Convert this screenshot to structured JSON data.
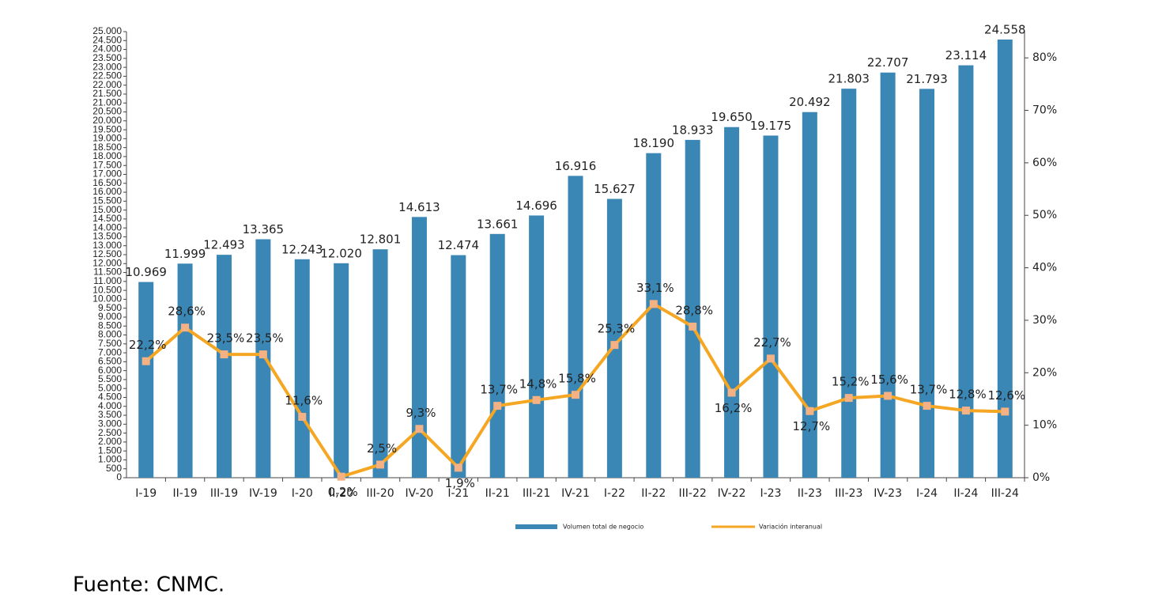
{
  "chart_data": {
    "type": "bar-line",
    "categories": [
      "I-19",
      "II-19",
      "III-19",
      "IV-19",
      "I-20",
      "II-20",
      "III-20",
      "IV-20",
      "I-21",
      "II-21",
      "III-21",
      "IV-21",
      "I-22",
      "II-22",
      "III-22",
      "IV-22",
      "I-23",
      "II-23",
      "III-23",
      "IV-23",
      "I-24",
      "II-24",
      "III-24"
    ],
    "series": [
      {
        "name": "Volumen total de negocio",
        "color": "#3a87b5",
        "values": [
          10969,
          11999,
          12493,
          13365,
          12243,
          12020,
          12801,
          14613,
          12474,
          13661,
          14696,
          16916,
          15627,
          18190,
          18933,
          19650,
          19175,
          20492,
          21803,
          22707,
          21793,
          23114,
          24558
        ],
        "value_labels": [
          "10.969",
          "11.999",
          "12.493",
          "13.365",
          "12.243",
          "12.020",
          "12.801",
          "14.613",
          "12.474",
          "13.661",
          "14.696",
          "16.916",
          "15.627",
          "18.190",
          "18.933",
          "19.650",
          "19.175",
          "20.492",
          "21.803",
          "22.707",
          "21.793",
          "23.114",
          "24.558"
        ]
      },
      {
        "name": "Variación interanual",
        "color": "#f5a623",
        "marker_color": "#f4b183",
        "axis": "y2",
        "values": [
          22.2,
          28.6,
          23.5,
          23.5,
          11.6,
          0.2,
          2.5,
          9.3,
          1.9,
          13.7,
          14.8,
          15.8,
          25.3,
          33.1,
          28.8,
          16.2,
          22.7,
          12.7,
          15.2,
          15.6,
          13.7,
          12.8,
          12.6
        ],
        "value_labels": [
          "22,2%",
          "28,6%",
          "23,5%",
          "23,5%",
          "11,6%",
          "0,2%",
          "2,5%",
          "9,3%",
          "1,9%",
          "13,7%",
          "14,8%",
          "15,8%",
          "25,3%",
          "33,1%",
          "28,8%",
          "16,2%",
          "22,7%",
          "12,7%",
          "15,2%",
          "15,6%",
          "13,7%",
          "12,8%",
          "12,6%"
        ]
      }
    ],
    "ylim": [
      0,
      25000
    ],
    "yticks": [
      0,
      500,
      {
        "value": 1000,
        "label": "1.000"
      },
      {
        "value": 1500,
        "label": "1.500"
      },
      {
        "value": 2000,
        "label": "2.000"
      },
      {
        "value": 2500,
        "label": "2.500"
      },
      {
        "value": 3000,
        "label": "3.000"
      },
      {
        "value": 3500,
        "label": "3.500"
      },
      {
        "value": 4000,
        "label": "4.000"
      },
      {
        "value": 4500,
        "label": "4.500"
      },
      {
        "value": 5000,
        "label": "5.000"
      },
      {
        "value": 5500,
        "label": "5.500"
      },
      {
        "value": 6000,
        "label": "6.000"
      },
      {
        "value": 6500,
        "label": "6.500"
      },
      {
        "value": 7000,
        "label": "7.000"
      },
      {
        "value": 7500,
        "label": "7.500"
      },
      {
        "value": 8000,
        "label": "8.000"
      },
      {
        "value": 8500,
        "label": "8.500"
      },
      {
        "value": 9000,
        "label": "9.000"
      },
      {
        "value": 9500,
        "label": "9.500"
      },
      {
        "value": 10000,
        "label": "10.000"
      },
      {
        "value": 10500,
        "label": "10.500"
      },
      {
        "value": 11000,
        "label": "11.000"
      },
      {
        "value": 11500,
        "label": "11.500"
      },
      {
        "value": 12000,
        "label": "12.000"
      },
      {
        "value": 12500,
        "label": "12.500"
      },
      {
        "value": 13000,
        "label": "13.000"
      },
      {
        "value": 13500,
        "label": "13.500"
      },
      {
        "value": 14000,
        "label": "14.000"
      },
      {
        "value": 14500,
        "label": "14.500"
      },
      {
        "value": 15000,
        "label": "15.000"
      },
      {
        "value": 15500,
        "label": "15.500"
      },
      {
        "value": 16000,
        "label": "16.000"
      },
      {
        "value": 16500,
        "label": "16.500"
      },
      {
        "value": 17000,
        "label": "17.000"
      },
      {
        "value": 17500,
        "label": "17.500"
      },
      {
        "value": 18000,
        "label": "18.000"
      },
      {
        "value": 18500,
        "label": "18.500"
      },
      {
        "value": 19000,
        "label": "19.000"
      },
      {
        "value": 19500,
        "label": "19.500"
      },
      {
        "value": 20000,
        "label": "20.000"
      },
      {
        "value": 20500,
        "label": "20.500"
      },
      {
        "value": 21000,
        "label": "21.000"
      },
      {
        "value": 21500,
        "label": "21.500"
      },
      {
        "value": 22000,
        "label": "22.000"
      },
      {
        "value": 22500,
        "label": "22.500"
      },
      {
        "value": 23000,
        "label": "23.000"
      },
      {
        "value": 23500,
        "label": "23.500"
      },
      {
        "value": 24000,
        "label": "24.000"
      },
      {
        "value": 24500,
        "label": "24.500"
      },
      {
        "value": 25000,
        "label": "25.000"
      }
    ],
    "y2lim": [
      0,
      85
    ],
    "y2ticks": [
      {
        "value": 0,
        "label": "0%"
      },
      {
        "value": 10,
        "label": "10%"
      },
      {
        "value": 20,
        "label": "20%"
      },
      {
        "value": 30,
        "label": "30%"
      },
      {
        "value": 40,
        "label": "40%"
      },
      {
        "value": 50,
        "label": "50%"
      },
      {
        "value": 60,
        "label": "60%"
      },
      {
        "value": 70,
        "label": "70%"
      },
      {
        "value": 80,
        "label": "80%"
      }
    ],
    "legend": "bottom",
    "source": "Fuente: CNMC."
  }
}
